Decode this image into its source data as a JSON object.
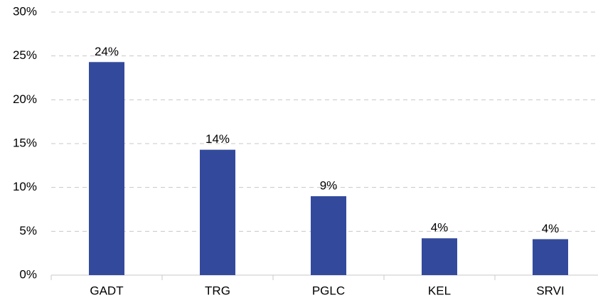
{
  "chart_data": {
    "type": "bar",
    "categories": [
      "GADT",
      "TRG",
      "PGLC",
      "KEL",
      "SRVI"
    ],
    "values": [
      24.3,
      14.3,
      9.0,
      4.2,
      4.1
    ],
    "value_labels": [
      "24%",
      "14%",
      "9%",
      "4%",
      "4%"
    ],
    "color": "#334a9c",
    "ylim": [
      0,
      30
    ],
    "yticks": [
      {
        "value": 0,
        "label": "0%"
      },
      {
        "value": 5,
        "label": "5%"
      },
      {
        "value": 10,
        "label": "10%"
      },
      {
        "value": 15,
        "label": "15%"
      },
      {
        "value": 20,
        "label": "20%"
      },
      {
        "value": 25,
        "label": "25%"
      },
      {
        "value": 30,
        "label": "30%"
      }
    ],
    "grid": true
  }
}
